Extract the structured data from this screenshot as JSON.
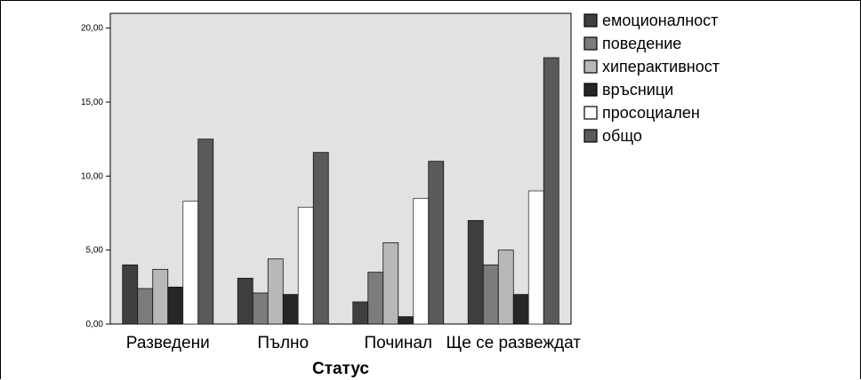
{
  "chart_data": {
    "type": "bar",
    "xlabel": "Статус",
    "ylabel": "",
    "ylim": [
      0,
      21
    ],
    "yticks": [
      0,
      5,
      10,
      15,
      20
    ],
    "ytick_labels": [
      "0,00",
      "5,00",
      "10,00",
      "15,00",
      "20,00"
    ],
    "categories": [
      "Разведени",
      "Пълно",
      "Починал",
      "Ще се развеждат"
    ],
    "series": [
      {
        "name": "емоционалност",
        "color": "#3f3f3f",
        "values": [
          4.0,
          3.1,
          1.5,
          7.0
        ]
      },
      {
        "name": "поведение",
        "color": "#7c7c7c",
        "values": [
          2.4,
          2.1,
          3.5,
          4.0
        ]
      },
      {
        "name": "хиперактивност",
        "color": "#b8b8b8",
        "values": [
          3.7,
          4.4,
          5.5,
          5.0
        ]
      },
      {
        "name": "връсници",
        "color": "#262626",
        "values": [
          2.5,
          2.0,
          0.5,
          2.0
        ]
      },
      {
        "name": "просоциален",
        "color": "#ffffff",
        "values": [
          8.3,
          7.9,
          8.5,
          9.0
        ]
      },
      {
        "name": "общо",
        "color": "#5a5a5a",
        "values": [
          12.5,
          11.6,
          11.0,
          18.0
        ]
      }
    ],
    "grid": false,
    "legend_position": "right",
    "plot_background": "#e2e2e2"
  }
}
